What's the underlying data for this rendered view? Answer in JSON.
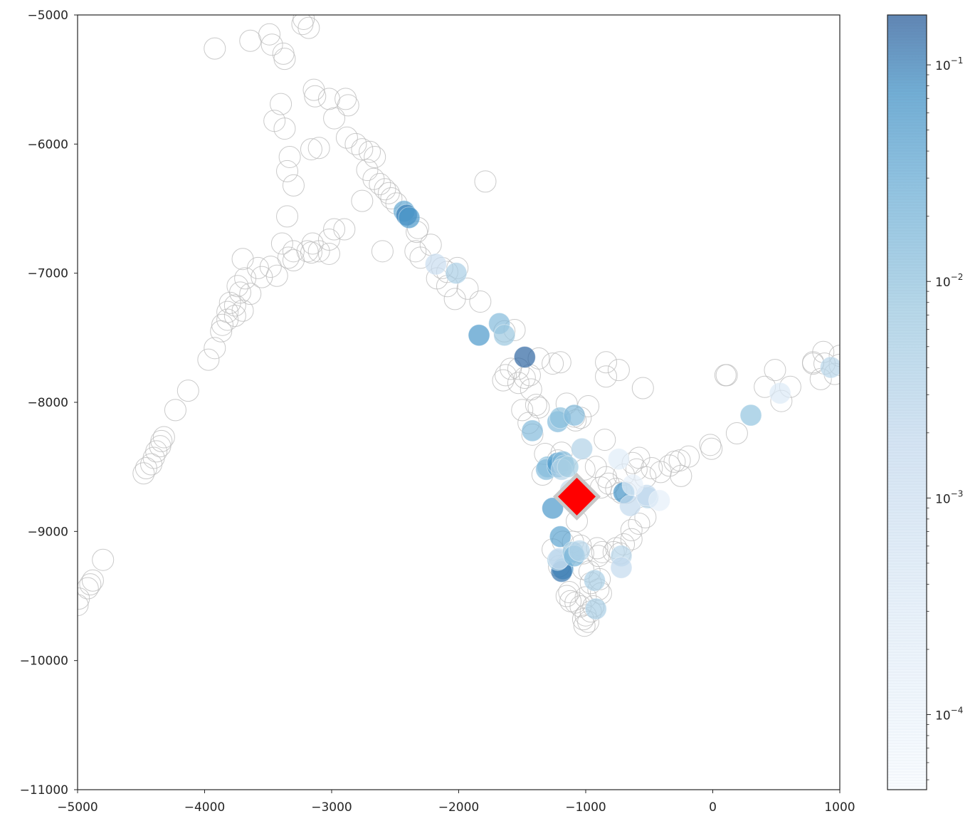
{
  "chart_data": {
    "type": "scatter",
    "title": "",
    "xlabel": "",
    "ylabel": "",
    "xlim": [
      -5000,
      1000
    ],
    "ylim": [
      -11000,
      -5000
    ],
    "x_ticks": [
      -5000,
      -4000,
      -3000,
      -2000,
      -1000,
      0,
      1000
    ],
    "x_tick_labels": [
      "−5000",
      "−4000",
      "−3000",
      "−2000",
      "−1000",
      "0",
      "1000"
    ],
    "y_ticks": [
      -5000,
      -6000,
      -7000,
      -8000,
      -9000,
      -10000,
      -11000
    ],
    "y_tick_labels": [
      "−5000",
      "−6000",
      "−7000",
      "−8000",
      "−9000",
      "−10000",
      "−11000"
    ],
    "grid": false,
    "colorbar": {
      "scale": "log",
      "colormap": "Blues",
      "range": [
        4.5e-05,
        0.17
      ],
      "ticks": [
        0.1,
        0.01,
        0.001,
        0.0001
      ],
      "tick_labels": [
        {
          "base": "10",
          "exp": "−1"
        },
        {
          "base": "10",
          "exp": "−2"
        },
        {
          "base": "10",
          "exp": "−3"
        },
        {
          "base": "10",
          "exp": "−4"
        }
      ]
    },
    "colors": {
      "hollow_edge": "#bdbdbd",
      "marker_fill": "#ff0000",
      "marker_edge": "#c8c8c8",
      "axis": "#262626"
    },
    "highlight_marker": {
      "shape": "diamond",
      "x": -1070,
      "y": -8730
    },
    "gray_points": [
      [
        -3920,
        -5260
      ],
      [
        -3640,
        -5200
      ],
      [
        -3490,
        -5150
      ],
      [
        -3470,
        -5230
      ],
      [
        -3380,
        -5300
      ],
      [
        -3370,
        -5340
      ],
      [
        -3220,
        -5030
      ],
      [
        -3230,
        -5070
      ],
      [
        -3180,
        -5100
      ],
      [
        -3140,
        -5580
      ],
      [
        -3130,
        -5630
      ],
      [
        -3020,
        -5650
      ],
      [
        -2890,
        -5650
      ],
      [
        -2870,
        -5700
      ],
      [
        -3400,
        -5690
      ],
      [
        -3450,
        -5820
      ],
      [
        -3370,
        -5880
      ],
      [
        -2980,
        -5800
      ],
      [
        -2880,
        -5950
      ],
      [
        -2810,
        -6000
      ],
      [
        -2760,
        -6040
      ],
      [
        -2700,
        -6060
      ],
      [
        -2660,
        -6100
      ],
      [
        -3330,
        -6100
      ],
      [
        -3350,
        -6210
      ],
      [
        -3300,
        -6320
      ],
      [
        -3160,
        -6040
      ],
      [
        -3100,
        -6030
      ],
      [
        -2720,
        -6200
      ],
      [
        -2670,
        -6270
      ],
      [
        -2620,
        -6310
      ],
      [
        -2580,
        -6350
      ],
      [
        -2550,
        -6380
      ],
      [
        -2530,
        -6420
      ],
      [
        -2490,
        -6460
      ],
      [
        -2760,
        -6440
      ],
      [
        -1790,
        -6290
      ],
      [
        -2320,
        -6650
      ],
      [
        -2330,
        -6680
      ],
      [
        -2340,
        -6830
      ],
      [
        -2300,
        -6880
      ],
      [
        -2220,
        -6780
      ],
      [
        -2010,
        -6960
      ],
      [
        -2130,
        -6960
      ],
      [
        -2090,
        -6990
      ],
      [
        -2170,
        -7040
      ],
      [
        -2090,
        -7100
      ],
      [
        -1930,
        -7120
      ],
      [
        -2030,
        -7200
      ],
      [
        -1830,
        -7220
      ],
      [
        -1640,
        -7450
      ],
      [
        -1560,
        -7440
      ],
      [
        -3350,
        -6560
      ],
      [
        -3390,
        -6770
      ],
      [
        -3340,
        -6880
      ],
      [
        -3300,
        -6830
      ],
      [
        -3300,
        -6900
      ],
      [
        -3190,
        -6830
      ],
      [
        -3150,
        -6770
      ],
      [
        -3160,
        -6840
      ],
      [
        -3100,
        -6830
      ],
      [
        -3020,
        -6740
      ],
      [
        -2980,
        -6660
      ],
      [
        -2900,
        -6660
      ],
      [
        -3020,
        -6850
      ],
      [
        -2600,
        -6830
      ],
      [
        -3700,
        -6890
      ],
      [
        -3580,
        -6960
      ],
      [
        -3480,
        -6950
      ],
      [
        -3430,
        -7020
      ],
      [
        -3550,
        -7030
      ],
      [
        -3680,
        -7040
      ],
      [
        -3740,
        -7100
      ],
      [
        -3720,
        -7150
      ],
      [
        -3640,
        -7160
      ],
      [
        -3800,
        -7230
      ],
      [
        -3760,
        -7250
      ],
      [
        -3820,
        -7300
      ],
      [
        -3760,
        -7330
      ],
      [
        -3700,
        -7290
      ],
      [
        -3820,
        -7360
      ],
      [
        -3860,
        -7400
      ],
      [
        -3870,
        -7450
      ],
      [
        -3920,
        -7580
      ],
      [
        -3970,
        -7670
      ],
      [
        -4130,
        -7910
      ],
      [
        -4230,
        -8060
      ],
      [
        -4320,
        -8270
      ],
      [
        -4340,
        -8300
      ],
      [
        -4350,
        -8340
      ],
      [
        -4380,
        -8380
      ],
      [
        -4400,
        -8430
      ],
      [
        -4420,
        -8480
      ],
      [
        -4460,
        -8510
      ],
      [
        -4480,
        -8550
      ],
      [
        -4800,
        -9220
      ],
      [
        -4880,
        -9380
      ],
      [
        -4900,
        -9410
      ],
      [
        -4920,
        -9440
      ],
      [
        -4990,
        -9520
      ],
      [
        -5000,
        -9570
      ],
      [
        -1260,
        -7700
      ],
      [
        -1630,
        -7790
      ],
      [
        -1590,
        -7740
      ],
      [
        -1530,
        -7740
      ],
      [
        -1650,
        -7830
      ],
      [
        -1530,
        -7850
      ],
      [
        -1480,
        -7810
      ],
      [
        -1370,
        -7660
      ],
      [
        -1440,
        -7790
      ],
      [
        -1430,
        -7900
      ],
      [
        -1390,
        -8020
      ],
      [
        -1370,
        -8040
      ],
      [
        -1500,
        -8060
      ],
      [
        -1450,
        -8160
      ],
      [
        -1420,
        -8250
      ],
      [
        -1150,
        -8010
      ],
      [
        -1090,
        -8110
      ],
      [
        -1040,
        -8120
      ],
      [
        -980,
        -8030
      ],
      [
        -1080,
        -8140
      ],
      [
        -840,
        -7690
      ],
      [
        -740,
        -7750
      ],
      [
        -840,
        -7800
      ],
      [
        -550,
        -7890
      ],
      [
        -850,
        -8290
      ],
      [
        -840,
        -8580
      ],
      [
        -880,
        -8660
      ],
      [
        -820,
        -8630
      ],
      [
        -1010,
        -8520
      ],
      [
        -920,
        -8500
      ],
      [
        -1320,
        -8400
      ],
      [
        -1190,
        -8390
      ],
      [
        -1340,
        -8560
      ],
      [
        -1220,
        -8450
      ],
      [
        -760,
        -8670
      ],
      [
        -720,
        -8700
      ],
      [
        -680,
        -8700
      ],
      [
        -700,
        -8560
      ],
      [
        -630,
        -8470
      ],
      [
        -580,
        -8430
      ],
      [
        -600,
        -8520
      ],
      [
        -480,
        -8510
      ],
      [
        -410,
        -8540
      ],
      [
        -340,
        -8490
      ],
      [
        -300,
        -8460
      ],
      [
        -260,
        -8450
      ],
      [
        -250,
        -8570
      ],
      [
        -190,
        -8420
      ],
      [
        -20,
        -8330
      ],
      [
        -10,
        -8360
      ],
      [
        190,
        -8240
      ],
      [
        -530,
        -8580
      ],
      [
        -530,
        -8890
      ],
      [
        -580,
        -8940
      ],
      [
        -640,
        -8990
      ],
      [
        -640,
        -9060
      ],
      [
        -700,
        -9100
      ],
      [
        -760,
        -9130
      ],
      [
        -730,
        -9170
      ],
      [
        -780,
        -9160
      ],
      [
        -870,
        -9160
      ],
      [
        -900,
        -9190
      ],
      [
        -910,
        -9130
      ],
      [
        -1020,
        -9170
      ],
      [
        -1040,
        -9110
      ],
      [
        -1100,
        -9080
      ],
      [
        -1180,
        -9080
      ],
      [
        -1260,
        -9140
      ],
      [
        -1210,
        -9270
      ],
      [
        -1020,
        -9290
      ],
      [
        -970,
        -9310
      ],
      [
        -960,
        -9400
      ],
      [
        -900,
        -9450
      ],
      [
        -880,
        -9480
      ],
      [
        -1130,
        -9470
      ],
      [
        -1150,
        -9500
      ],
      [
        -1120,
        -9540
      ],
      [
        -1080,
        -9550
      ],
      [
        -1040,
        -9580
      ],
      [
        -1000,
        -9510
      ],
      [
        -940,
        -9580
      ],
      [
        -960,
        -9620
      ],
      [
        -1000,
        -9650
      ],
      [
        -1020,
        -9680
      ],
      [
        -980,
        -9700
      ],
      [
        -1010,
        -9730
      ],
      [
        -1070,
        -8920
      ],
      [
        -890,
        -9370
      ],
      [
        -1200,
        -7690
      ],
      [
        410,
        -7880
      ],
      [
        490,
        -7750
      ],
      [
        540,
        -7990
      ],
      [
        610,
        -7880
      ],
      [
        790,
        -7690
      ],
      [
        790,
        -7700
      ],
      [
        870,
        -7610
      ],
      [
        880,
        -7700
      ],
      [
        850,
        -7820
      ],
      [
        960,
        -7780
      ],
      [
        1000,
        -7640
      ],
      [
        1000,
        -7710
      ],
      [
        100,
        -7790
      ],
      [
        110,
        -7790
      ]
    ],
    "color_points": [
      [
        -2430,
        -6520,
        0.035
      ],
      [
        -2410,
        -6550,
        0.1
      ],
      [
        -2390,
        -6570,
        0.06
      ],
      [
        -2180,
        -6930,
        0.0015
      ],
      [
        -2020,
        -7000,
        0.005
      ],
      [
        -1840,
        -7480,
        0.06
      ],
      [
        -1680,
        -7390,
        0.015
      ],
      [
        -1640,
        -7480,
        0.008
      ],
      [
        -1480,
        -7650,
        0.15
      ],
      [
        -1420,
        -8220,
        0.015
      ],
      [
        -1220,
        -8150,
        0.015
      ],
      [
        -1200,
        -8120,
        0.012
      ],
      [
        -1090,
        -8100,
        0.015
      ],
      [
        -1030,
        -8360,
        0.004
      ],
      [
        -1300,
        -8500,
        0.012
      ],
      [
        -1310,
        -8520,
        0.015
      ],
      [
        -1220,
        -8500,
        0.035
      ],
      [
        -1220,
        -8470,
        0.05
      ],
      [
        -1180,
        -8460,
        0.015
      ],
      [
        -1170,
        -8490,
        0.008
      ],
      [
        -1190,
        -8520,
        0.004
      ],
      [
        -1140,
        -8500,
        0.006
      ],
      [
        -1120,
        -8680,
        0.002
      ],
      [
        -1260,
        -8820,
        0.06
      ],
      [
        -1200,
        -9040,
        0.04
      ],
      [
        -1180,
        -9290,
        0.06
      ],
      [
        -1190,
        -9310,
        0.12
      ],
      [
        -1220,
        -9220,
        0.005
      ],
      [
        -1210,
        -9210,
        0.002
      ],
      [
        -1100,
        -9160,
        0.008
      ],
      [
        -1090,
        -9190,
        0.02
      ],
      [
        -1050,
        -9150,
        0.003
      ],
      [
        -720,
        -9190,
        0.003
      ],
      [
        -720,
        -9280,
        0.002
      ],
      [
        -930,
        -9380,
        0.005
      ],
      [
        -920,
        -9600,
        0.005
      ],
      [
        -700,
        -8700,
        0.07
      ],
      [
        -650,
        -8800,
        0.002
      ],
      [
        -510,
        -8740,
        0.003
      ],
      [
        -520,
        -8720,
        0.002
      ],
      [
        -740,
        -8440,
        0.0003
      ],
      [
        -420,
        -8760,
        0.0002
      ],
      [
        -630,
        -8640,
        0.0002
      ],
      [
        300,
        -8100,
        0.01
      ],
      [
        930,
        -7730,
        0.003
      ],
      [
        530,
        -7930,
        0.0004
      ]
    ]
  }
}
